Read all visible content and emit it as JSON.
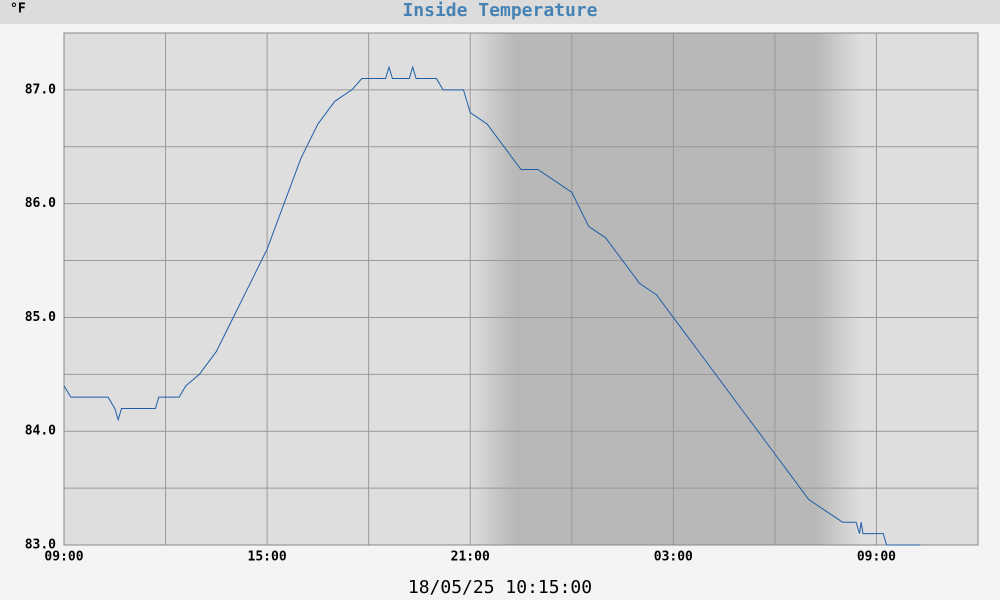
{
  "chart_data": {
    "type": "line",
    "title": "Inside Temperature",
    "y_unit": "°F",
    "timestamp": "18/05/25 10:15:00",
    "x": [
      9,
      9.2,
      10.3,
      10.5,
      10.6,
      10.7,
      11.7,
      11.8,
      12.4,
      12.6,
      13,
      13.5,
      14,
      14.5,
      15,
      15.5,
      16,
      16.5,
      17,
      17.5,
      17.8,
      18.5,
      18.6,
      18.7,
      19.2,
      19.3,
      19.4,
      20,
      20.2,
      20.8,
      21,
      21.5,
      22,
      22.5,
      23,
      23.5,
      24,
      24.5,
      25,
      25.5,
      26,
      26.5,
      27,
      27.5,
      28,
      28.5,
      29,
      29.5,
      30,
      30.5,
      31,
      31.5,
      32,
      32.4,
      32.5,
      32.55,
      32.6,
      33.2,
      33.3,
      34.3
    ],
    "series": [
      {
        "name": "Inside Temperature",
        "color": "#1f5fa8",
        "values": [
          84.4,
          84.3,
          84.3,
          84.2,
          84.1,
          84.2,
          84.2,
          84.3,
          84.3,
          84.4,
          84.5,
          84.7,
          85.0,
          85.3,
          85.6,
          86.0,
          86.4,
          86.7,
          86.9,
          87.0,
          87.1,
          87.1,
          87.2,
          87.1,
          87.1,
          87.2,
          87.1,
          87.1,
          87.0,
          87.0,
          86.8,
          86.7,
          86.5,
          86.3,
          86.3,
          86.2,
          86.1,
          85.8,
          85.7,
          85.5,
          85.3,
          85.2,
          85.0,
          84.8,
          84.6,
          84.4,
          84.2,
          84.0,
          83.8,
          83.6,
          83.4,
          83.3,
          83.2,
          83.2,
          83.1,
          83.2,
          83.1,
          83.1,
          83.0,
          83.0
        ]
      }
    ],
    "xlim": [
      9,
      36
    ],
    "xticks": [
      {
        "value": 9,
        "label": "09:00"
      },
      {
        "value": 15,
        "label": "15:00"
      },
      {
        "value": 21,
        "label": "21:00"
      },
      {
        "value": 27,
        "label": "03:00"
      },
      {
        "value": 33,
        "label": "09:00"
      }
    ],
    "x_minor_grid": [
      12,
      18,
      24,
      30
    ],
    "ylim": [
      83,
      87.5
    ],
    "yticks": [
      {
        "value": 83,
        "label": "83.0"
      },
      {
        "value": 84,
        "label": "84.0"
      },
      {
        "value": 85,
        "label": "85.0"
      },
      {
        "value": 86,
        "label": "86.0"
      },
      {
        "value": 87,
        "label": "87.0"
      }
    ],
    "y_minor_grid": [
      83.5,
      84.5,
      85.5,
      86.5
    ],
    "night_band": [
      22.3,
      31.2
    ],
    "grid": true
  }
}
